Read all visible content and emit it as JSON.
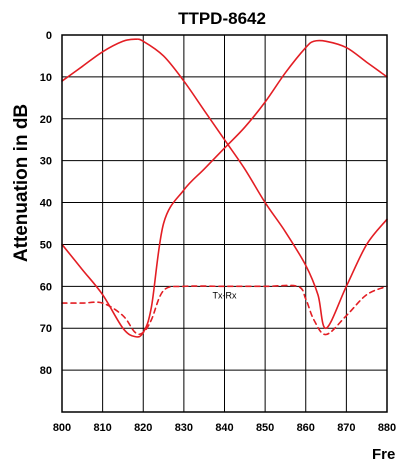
{
  "chart_data": {
    "type": "line",
    "title": "TTPD-8642",
    "ylabel": "Attenuation in dB",
    "xlabel": "Fre",
    "xlim": [
      800,
      880
    ],
    "ylim": [
      0,
      90
    ],
    "y_inverted": true,
    "grid": true,
    "x_ticks": [
      800,
      810,
      820,
      830,
      840,
      850,
      860,
      870,
      880
    ],
    "y_ticks": [
      0,
      10,
      20,
      30,
      40,
      50,
      60,
      70,
      80
    ],
    "colors": {
      "series": "#e31e24"
    },
    "annotations": [
      {
        "text": "Tx-Rx",
        "x": 840,
        "y": 62
      }
    ],
    "series": [
      {
        "style": "solid",
        "x": [
          800,
          805,
          810,
          815,
          818,
          820,
          825,
          830,
          835,
          840,
          845,
          850,
          855,
          860,
          863,
          865,
          870,
          875,
          880
        ],
        "y": [
          11,
          7.5,
          4,
          1.5,
          1,
          1.5,
          5,
          11,
          18,
          25,
          32,
          40,
          47,
          55,
          62,
          70,
          60,
          50,
          44
        ]
      },
      {
        "style": "solid",
        "x": [
          800,
          805,
          810,
          815,
          818,
          820,
          822,
          825,
          830,
          835,
          840,
          845,
          850,
          855,
          860,
          862,
          865,
          870,
          875,
          880
        ],
        "y": [
          50,
          56,
          62,
          70,
          72,
          71,
          65,
          45,
          37,
          32,
          27,
          22,
          16,
          9,
          3,
          1.5,
          1.5,
          3,
          6.5,
          10
        ]
      },
      {
        "style": "dashed",
        "x": [
          800,
          805,
          810,
          815,
          818,
          820,
          822,
          825,
          830,
          840,
          850,
          858,
          860,
          862,
          865,
          870,
          875,
          880
        ],
        "y": [
          64,
          64,
          64,
          67,
          71,
          71,
          68,
          61,
          60,
          60,
          60,
          60,
          63,
          68,
          71.5,
          67,
          62,
          60
        ]
      }
    ]
  }
}
